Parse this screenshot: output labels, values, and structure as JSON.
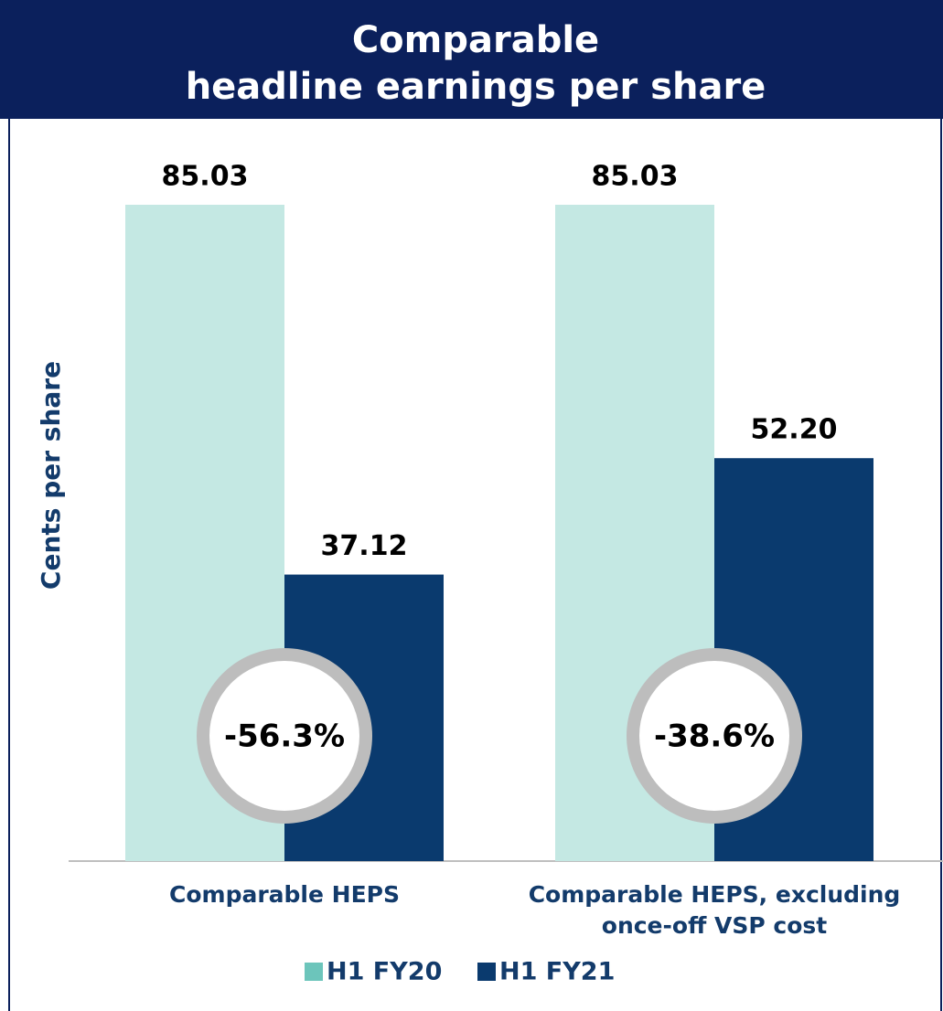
{
  "chart_data": {
    "type": "bar",
    "title": [
      "Comparable",
      "headline earnings per share"
    ],
    "y_label": "Cents per share",
    "categories": [
      "Comparable HEPS",
      "Comparable HEPS, excluding once-off VSP cost"
    ],
    "series": [
      {
        "name": "H1 FY20",
        "color": "#c4e8e3",
        "legend_color": "#6cc5bb",
        "values": [
          85.03,
          85.03
        ],
        "value_labels": [
          "85.03",
          "85.03"
        ]
      },
      {
        "name": "H1 FY21",
        "color": "#0a3a6e",
        "legend_color": "#0a3a6e",
        "values": [
          37.12,
          52.2
        ],
        "value_labels": [
          "37.12",
          "52.20"
        ]
      }
    ],
    "annotations": [
      "-56.3%",
      "-38.6%"
    ],
    "ylim": [
      0,
      100
    ],
    "legend": "bottom"
  }
}
